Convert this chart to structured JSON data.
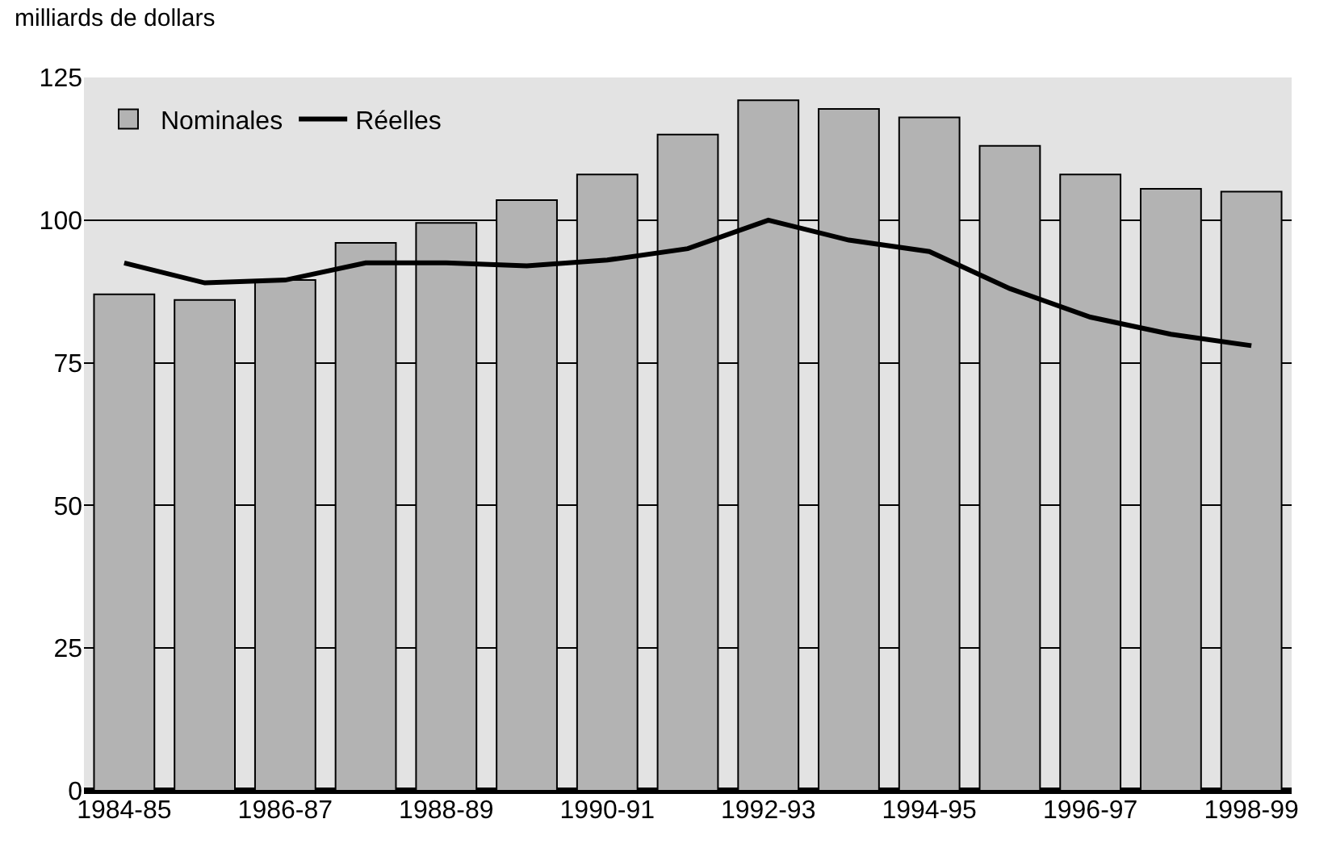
{
  "chart_data": {
    "type": "bar",
    "ylabel": "milliards de dollars",
    "categories": [
      "1984-85",
      null,
      "1986-87",
      null,
      "1988-89",
      null,
      "1990-91",
      null,
      "1992-93",
      null,
      "1994-95",
      null,
      "1996-97",
      null,
      "1998-99"
    ],
    "series": [
      {
        "name": "Nominales",
        "color": "#b3b3b3",
        "values": [
          87,
          86,
          89.5,
          96,
          99.5,
          103.5,
          108,
          115,
          121,
          119.5,
          118,
          113,
          108,
          105.5,
          105
        ]
      },
      {
        "name": "Réelles",
        "type": "line",
        "color": "#000000",
        "values": [
          92.5,
          89,
          89.5,
          92.5,
          92.5,
          92,
          93,
          95,
          100,
          96.5,
          94.5,
          88,
          83,
          80,
          78
        ]
      }
    ],
    "ylim": [
      0,
      125
    ],
    "yticks": [
      0,
      25,
      50,
      75,
      100,
      125
    ],
    "grid": "y",
    "legend": "top left",
    "marker": "none",
    "line_style": "solid"
  }
}
